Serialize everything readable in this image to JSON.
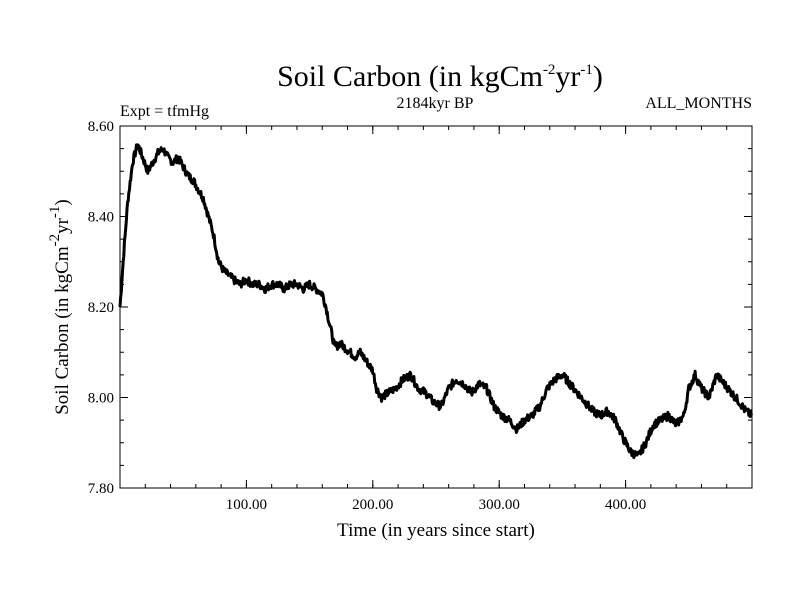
{
  "chart_data": {
    "type": "line",
    "title": "Soil Carbon (in kgCm",
    "title_exp1": "-2",
    "title_mid": "yr",
    "title_exp2": "-1",
    "title_end": ")",
    "expt_label": "Expt = tfmHg",
    "period_label": "2184kyr BP",
    "months_label": "ALL_MONTHS",
    "xlabel": "Time (in years since start)",
    "ylabel": "Soil Carbon (in kgCm",
    "ylabel_exp1": "-2",
    "ylabel_mid": "yr",
    "ylabel_exp2": "-1",
    "ylabel_end": ")",
    "xlim": [
      0,
      500
    ],
    "ylim": [
      7.8,
      8.6
    ],
    "xticks": [
      100,
      200,
      300,
      400
    ],
    "xtick_labels": [
      "100.00",
      "200.00",
      "300.00",
      "400.00"
    ],
    "yticks": [
      7.8,
      8.0,
      8.2,
      8.4,
      8.6
    ],
    "ytick_labels": [
      "7.80",
      "8.00",
      "8.20",
      "8.40",
      "8.60"
    ],
    "line_color": "#000000",
    "series": [
      {
        "name": "Soil Carbon",
        "x": [
          0,
          3,
          6,
          10,
          14,
          18,
          22,
          26,
          30,
          34,
          38,
          42,
          46,
          50,
          54,
          58,
          62,
          66,
          70,
          74,
          78,
          82,
          86,
          90,
          95,
          100,
          105,
          110,
          115,
          120,
          125,
          130,
          135,
          140,
          145,
          150,
          155,
          160,
          163,
          166,
          170,
          174,
          178,
          182,
          186,
          190,
          195,
          200,
          203,
          207,
          212,
          218,
          224,
          230,
          236,
          242,
          248,
          254,
          260,
          266,
          272,
          278,
          284,
          290,
          296,
          302,
          308,
          314,
          320,
          326,
          332,
          338,
          344,
          350,
          356,
          362,
          368,
          374,
          380,
          386,
          392,
          398,
          404,
          410,
          416,
          422,
          428,
          434,
          440,
          446,
          450,
          455,
          460,
          466,
          472,
          478,
          484,
          490,
          495,
          500
        ],
        "y": [
          8.2,
          8.32,
          8.43,
          8.52,
          8.56,
          8.53,
          8.5,
          8.52,
          8.54,
          8.55,
          8.53,
          8.52,
          8.53,
          8.51,
          8.49,
          8.48,
          8.46,
          8.44,
          8.4,
          8.36,
          8.3,
          8.28,
          8.27,
          8.26,
          8.25,
          8.26,
          8.25,
          8.25,
          8.24,
          8.25,
          8.25,
          8.24,
          8.25,
          8.25,
          8.24,
          8.25,
          8.24,
          8.23,
          8.2,
          8.16,
          8.11,
          8.12,
          8.11,
          8.1,
          8.09,
          8.1,
          8.08,
          8.06,
          8.02,
          8.0,
          8.01,
          8.02,
          8.04,
          8.05,
          8.02,
          8.01,
          7.99,
          7.98,
          8.02,
          8.04,
          8.03,
          8.01,
          8.03,
          8.02,
          7.98,
          7.96,
          7.95,
          7.93,
          7.95,
          7.96,
          7.98,
          8.02,
          8.04,
          8.05,
          8.03,
          8.01,
          7.99,
          7.97,
          7.96,
          7.97,
          7.95,
          7.91,
          7.88,
          7.87,
          7.9,
          7.94,
          7.95,
          7.96,
          7.94,
          7.96,
          8.02,
          8.05,
          8.02,
          8.0,
          8.05,
          8.03,
          8.01,
          7.99,
          7.97,
          7.96
        ]
      }
    ]
  }
}
